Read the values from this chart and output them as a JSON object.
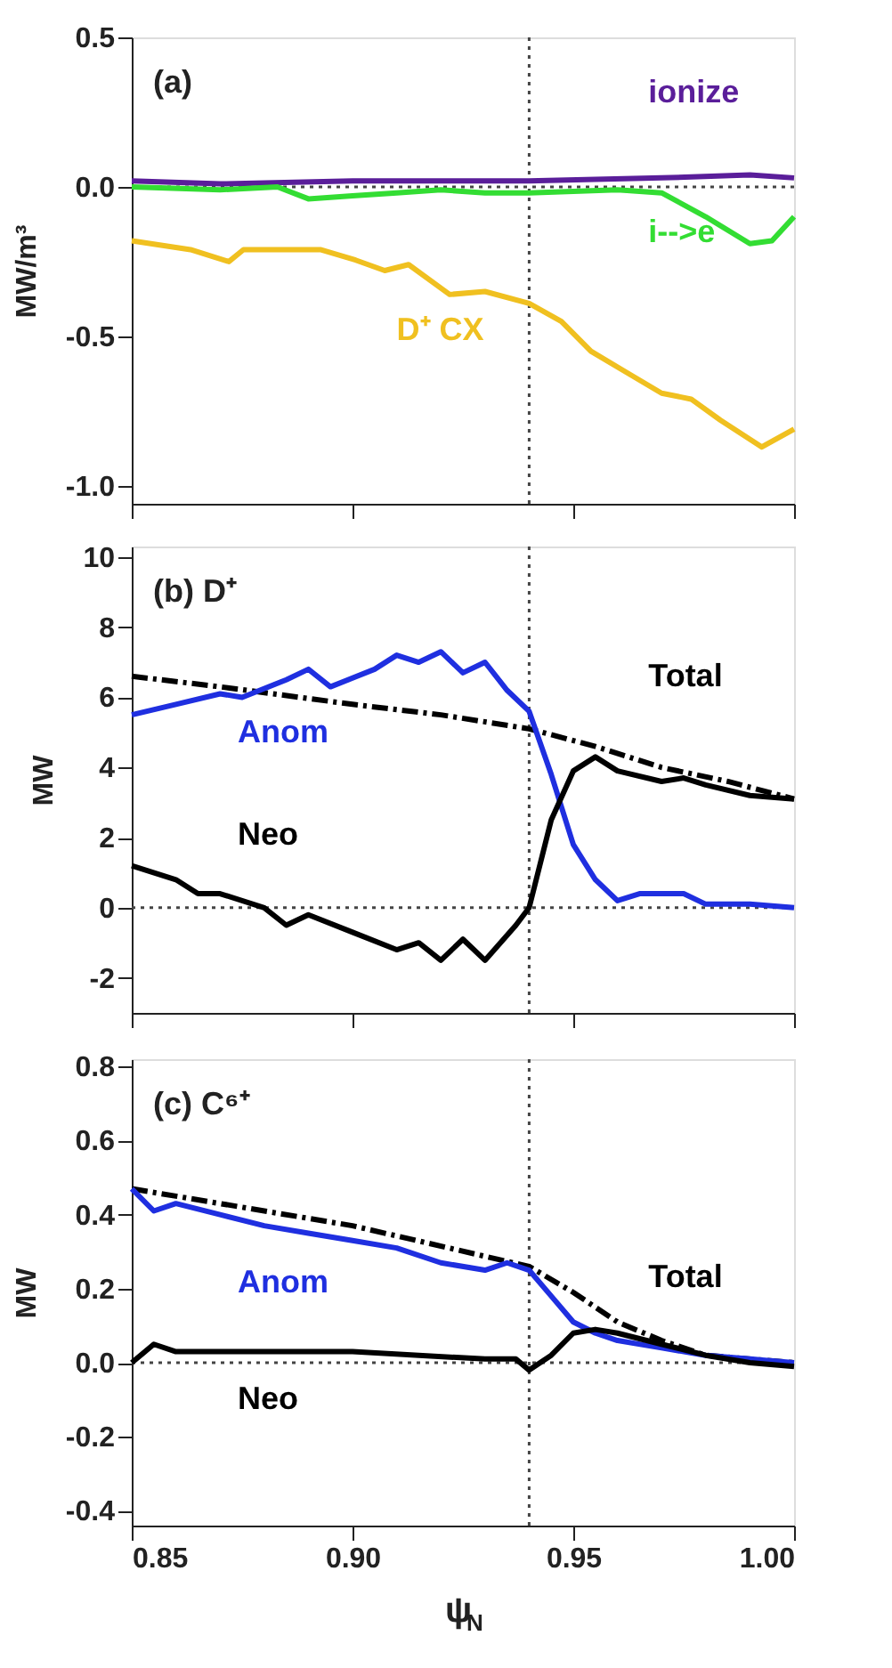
{
  "chart_data": [
    {
      "type": "line",
      "ylabel": "MW/m³",
      "annotations": [
        "(a)"
      ],
      "xlim": [
        0.85,
        1.0
      ],
      "ylim": [
        -1.06,
        0.5
      ],
      "xticks": [
        {
          "value": 0.85,
          "label": null
        },
        {
          "value": 0.9,
          "label": null
        },
        {
          "value": 0.95,
          "label": null
        },
        {
          "value": 1.0,
          "label": null
        }
      ],
      "yticks": [
        {
          "value": -1.0,
          "label": "-1.0"
        },
        {
          "value": -0.5,
          "label": "-0.5"
        },
        {
          "value": 0,
          "label": "0.0"
        },
        {
          "value": 0.5,
          "label": "0.5"
        }
      ],
      "tick_labels": "y",
      "grid": false,
      "ref_lines": [
        {
          "axis": "x",
          "value": 0.94,
          "line_style": "dotted"
        },
        {
          "axis": "y",
          "value": 0,
          "line_style": "dotted"
        }
      ],
      "series": [
        {
          "name": "ionize",
          "color": "#5a1e9a",
          "x": [
            0.85,
            0.87,
            0.9,
            0.94,
            0.97,
            0.99,
            1.0
          ],
          "values": [
            0.02,
            0.01,
            0.02,
            0.02,
            0.03,
            0.04,
            0.03
          ]
        },
        {
          "name": "i-->e",
          "color": "#33dd33",
          "x": [
            0.85,
            0.87,
            0.883,
            0.89,
            0.9,
            0.91,
            0.92,
            0.93,
            0.94,
            0.96,
            0.97,
            0.98,
            0.99,
            0.995,
            1.0
          ],
          "values": [
            0.0,
            -0.01,
            0.0,
            -0.04,
            -0.03,
            -0.02,
            -0.01,
            -0.02,
            -0.02,
            -0.01,
            -0.02,
            -0.1,
            -0.19,
            -0.18,
            -0.1
          ]
        },
        {
          "name": "D⁺ CX",
          "color": "#f0c020",
          "x": [
            0.85,
            0.8633,
            0.872,
            0.8753,
            0.8847,
            0.8927,
            0.9007,
            0.9073,
            0.9127,
            0.922,
            0.93,
            0.94,
            0.9473,
            0.954,
            0.962,
            0.97,
            0.9767,
            0.9833,
            0.9927,
            1.0
          ],
          "values": [
            -0.18,
            -0.21,
            -0.25,
            -0.21,
            -0.21,
            -0.21,
            -0.245,
            -0.28,
            -0.26,
            -0.36,
            -0.35,
            -0.39,
            -0.45,
            -0.55,
            -0.62,
            -0.69,
            -0.71,
            -0.78,
            -0.87,
            -0.81
          ]
        }
      ]
    },
    {
      "type": "line",
      "ylabel": "MW",
      "annotations": [
        "(b) D⁺"
      ],
      "xlim": [
        0.85,
        1.0
      ],
      "ylim": [
        -3,
        10.3
      ],
      "xticks": [
        {
          "value": 0.85,
          "label": null
        },
        {
          "value": 0.9,
          "label": null
        },
        {
          "value": 0.95,
          "label": null
        },
        {
          "value": 1.0,
          "label": null
        }
      ],
      "yticks": [
        -2,
        0,
        2,
        4,
        6,
        8,
        10
      ],
      "tick_labels": "y",
      "grid": false,
      "ref_lines": [
        {
          "axis": "x",
          "value": 0.94,
          "line_style": "dotted"
        },
        {
          "axis": "y",
          "value": 0,
          "line_style": "dotted"
        }
      ],
      "series": [
        {
          "name": "Total",
          "color": "#000000",
          "line_style": "dashed",
          "x": [
            0.85,
            0.87,
            0.9,
            0.92,
            0.94,
            0.955,
            0.97,
            0.985,
            1.0
          ],
          "values": [
            6.6,
            6.3,
            5.8,
            5.5,
            5.1,
            4.6,
            4.0,
            3.6,
            3.1
          ]
        },
        {
          "name": "Anom",
          "color": "#1f2fe0",
          "x": [
            0.85,
            0.86,
            0.87,
            0.875,
            0.885,
            0.89,
            0.895,
            0.905,
            0.91,
            0.915,
            0.92,
            0.925,
            0.93,
            0.935,
            0.94,
            0.945,
            0.95,
            0.955,
            0.96,
            0.965,
            0.975,
            0.98,
            0.99,
            1.0
          ],
          "values": [
            5.5,
            5.8,
            6.1,
            6.0,
            6.5,
            6.8,
            6.3,
            6.8,
            7.2,
            7.0,
            7.3,
            6.7,
            7.0,
            6.2,
            5.6,
            3.8,
            1.8,
            0.8,
            0.2,
            0.4,
            0.4,
            0.1,
            0.1,
            0.0
          ]
        },
        {
          "name": "Neo",
          "color": "#000000",
          "x": [
            0.85,
            0.86,
            0.865,
            0.87,
            0.88,
            0.885,
            0.89,
            0.9,
            0.91,
            0.915,
            0.92,
            0.925,
            0.93,
            0.937,
            0.94,
            0.945,
            0.95,
            0.955,
            0.96,
            0.97,
            0.975,
            0.98,
            0.99,
            1.0
          ],
          "values": [
            1.2,
            0.8,
            0.4,
            0.4,
            0.0,
            -0.5,
            -0.2,
            -0.7,
            -1.2,
            -1.0,
            -1.5,
            -0.9,
            -1.5,
            -0.5,
            0.0,
            2.5,
            3.9,
            4.3,
            3.9,
            3.6,
            3.7,
            3.5,
            3.2,
            3.1
          ]
        }
      ]
    },
    {
      "type": "line",
      "xlabel": "ψ$_{N}$",
      "ylabel": "MW",
      "annotations": [
        "(c) C⁶⁺"
      ],
      "xlim": [
        0.85,
        1.0
      ],
      "ylim": [
        -0.44,
        0.82
      ],
      "xticks": [
        {
          "value": 0.85,
          "label": "0.85"
        },
        {
          "value": 0.9,
          "label": "0.90"
        },
        {
          "value": 0.95,
          "label": "0.95"
        },
        {
          "value": 1.0,
          "label": "1.00"
        }
      ],
      "yticks": [
        {
          "value": -0.4,
          "label": "-0.4"
        },
        {
          "value": -0.2,
          "label": "-0.2"
        },
        {
          "value": 0,
          "label": "0.0"
        },
        {
          "value": 0.2,
          "label": "0.2"
        },
        {
          "value": 0.4,
          "label": "0.4"
        },
        {
          "value": 0.6,
          "label": "0.6"
        },
        {
          "value": 0.8,
          "label": "0.8"
        }
      ],
      "grid": false,
      "ref_lines": [
        {
          "axis": "x",
          "value": 0.94,
          "line_style": "dotted"
        },
        {
          "axis": "y",
          "value": 0,
          "line_style": "dotted"
        }
      ],
      "series": [
        {
          "name": "Total",
          "color": "#000000",
          "line_style": "dashed",
          "x": [
            0.85,
            0.9,
            0.94,
            0.95,
            0.96,
            0.97,
            0.98,
            1.0
          ],
          "values": [
            0.47,
            0.37,
            0.26,
            0.19,
            0.11,
            0.06,
            0.02,
            0.0
          ]
        },
        {
          "name": "Anom",
          "color": "#1f2fe0",
          "x": [
            0.85,
            0.855,
            0.86,
            0.87,
            0.88,
            0.89,
            0.9,
            0.91,
            0.92,
            0.93,
            0.935,
            0.94,
            0.945,
            0.95,
            0.955,
            0.96,
            0.97,
            0.98,
            0.99,
            1.0
          ],
          "values": [
            0.47,
            0.41,
            0.43,
            0.4,
            0.37,
            0.35,
            0.33,
            0.31,
            0.27,
            0.25,
            0.27,
            0.25,
            0.18,
            0.11,
            0.08,
            0.06,
            0.04,
            0.02,
            0.01,
            0.0
          ]
        },
        {
          "name": "Neo",
          "color": "#000000",
          "x": [
            0.85,
            0.855,
            0.86,
            0.9,
            0.93,
            0.937,
            0.94,
            0.945,
            0.95,
            0.955,
            0.96,
            0.97,
            0.98,
            0.99,
            1.0
          ],
          "values": [
            0.0,
            0.05,
            0.03,
            0.03,
            0.01,
            0.01,
            -0.02,
            0.02,
            0.08,
            0.09,
            0.08,
            0.05,
            0.02,
            0.0,
            -0.01
          ]
        }
      ]
    }
  ]
}
